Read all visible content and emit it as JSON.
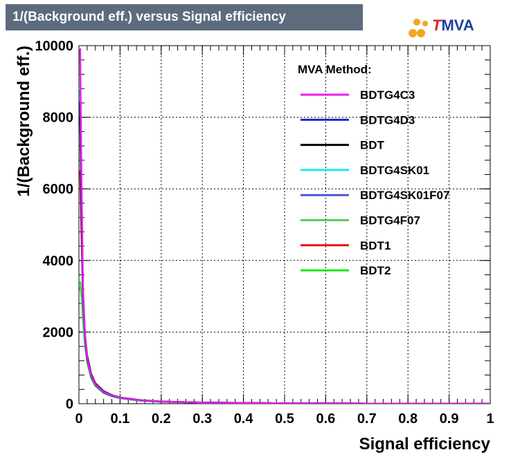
{
  "chart_data": {
    "type": "line",
    "title": "1/(Background eff.) versus Signal efficiency",
    "xlabel": "Signal efficiency",
    "ylabel": "1/(Background eff.)",
    "xlim": [
      0,
      1
    ],
    "ylim": [
      0,
      10000
    ],
    "xticks": [
      "0",
      "0.1",
      "0.2",
      "0.3",
      "0.4",
      "0.5",
      "0.6",
      "0.7",
      "0.8",
      "0.9",
      "1"
    ],
    "yticks": [
      "0",
      "2000",
      "4000",
      "6000",
      "8000",
      "10000"
    ],
    "grid": true,
    "legend_header": "MVA Method:",
    "legend_position": "top-right",
    "series": [
      {
        "name": "BDTG4C3",
        "color": "#e81ce8",
        "x": [
          0.003,
          0.006,
          0.01,
          0.015,
          0.02,
          0.03,
          0.04,
          0.06,
          0.08,
          0.1,
          0.15,
          0.2,
          0.3,
          0.5,
          0.7,
          1.0
        ],
        "y": [
          9900,
          6500,
          3200,
          1900,
          1300,
          780,
          540,
          330,
          230,
          170,
          95,
          60,
          32,
          12,
          5,
          1
        ]
      },
      {
        "name": "BDTG4D3",
        "color": "#1024c8",
        "x": [
          0.003,
          0.006,
          0.01,
          0.015,
          0.02,
          0.03,
          0.04,
          0.06,
          0.08,
          0.1,
          0.15,
          0.2,
          0.3,
          0.5,
          0.7,
          1.0
        ],
        "y": [
          8400,
          5700,
          3000,
          1800,
          1250,
          760,
          530,
          320,
          225,
          165,
          92,
          58,
          31,
          12,
          5,
          1
        ]
      },
      {
        "name": "BDT",
        "color": "#000000",
        "x": [
          0.003,
          0.006,
          0.01,
          0.015,
          0.02,
          0.03,
          0.04,
          0.06,
          0.08,
          0.1,
          0.15,
          0.2,
          0.3,
          0.5,
          0.7,
          1.0
        ],
        "y": [
          8000,
          5400,
          3000,
          1900,
          1350,
          820,
          570,
          350,
          240,
          175,
          98,
          62,
          33,
          13,
          5,
          1
        ]
      },
      {
        "name": "BDTG4SK01",
        "color": "#22e8e8",
        "x": [
          0.003,
          0.006,
          0.01,
          0.015,
          0.02,
          0.03,
          0.04,
          0.06,
          0.08,
          0.1,
          0.15,
          0.2,
          0.3,
          0.5,
          0.7,
          1.0
        ],
        "y": [
          8800,
          5900,
          3000,
          1800,
          1250,
          750,
          520,
          315,
          220,
          160,
          90,
          57,
          30,
          12,
          5,
          1
        ]
      },
      {
        "name": "BDTG4SK01F07",
        "color": "#5050d0",
        "x": [
          0.003,
          0.006,
          0.01,
          0.015,
          0.02,
          0.03,
          0.04,
          0.06,
          0.08,
          0.1,
          0.15,
          0.2,
          0.3,
          0.5,
          0.7,
          1.0
        ],
        "y": [
          8500,
          5600,
          2900,
          1750,
          1220,
          740,
          510,
          310,
          215,
          158,
          88,
          56,
          30,
          12,
          5,
          1
        ]
      },
      {
        "name": "BDTG4F07",
        "color": "#58cc58",
        "x": [
          0.003,
          0.006,
          0.01,
          0.015,
          0.02,
          0.03,
          0.04,
          0.06,
          0.08,
          0.1,
          0.15,
          0.2,
          0.3,
          0.5,
          0.7,
          1.0
        ],
        "y": [
          3300,
          3000,
          2500,
          1700,
          1200,
          720,
          500,
          300,
          210,
          155,
          87,
          55,
          29,
          11,
          5,
          1
        ]
      },
      {
        "name": "BDT1",
        "color": "#e81010",
        "x": [
          0.003,
          0.006,
          0.01,
          0.015,
          0.02,
          0.03,
          0.04,
          0.06,
          0.08,
          0.1,
          0.15,
          0.2,
          0.3,
          0.5,
          0.7,
          1.0
        ],
        "y": [
          6500,
          4800,
          2900,
          1850,
          1300,
          790,
          550,
          335,
          232,
          170,
          95,
          60,
          32,
          12,
          5,
          1
        ]
      },
      {
        "name": "BDT2",
        "color": "#18e818",
        "x": [
          0.003,
          0.006,
          0.01,
          0.015,
          0.02,
          0.03,
          0.04,
          0.06,
          0.08,
          0.1,
          0.15,
          0.2,
          0.3,
          0.5,
          0.7,
          1.0
        ],
        "y": [
          3400,
          3100,
          2300,
          1600,
          1150,
          700,
          490,
          295,
          205,
          150,
          85,
          54,
          29,
          11,
          5,
          1
        ]
      }
    ]
  },
  "logo": {
    "t": "T",
    "rest": "MVA"
  }
}
